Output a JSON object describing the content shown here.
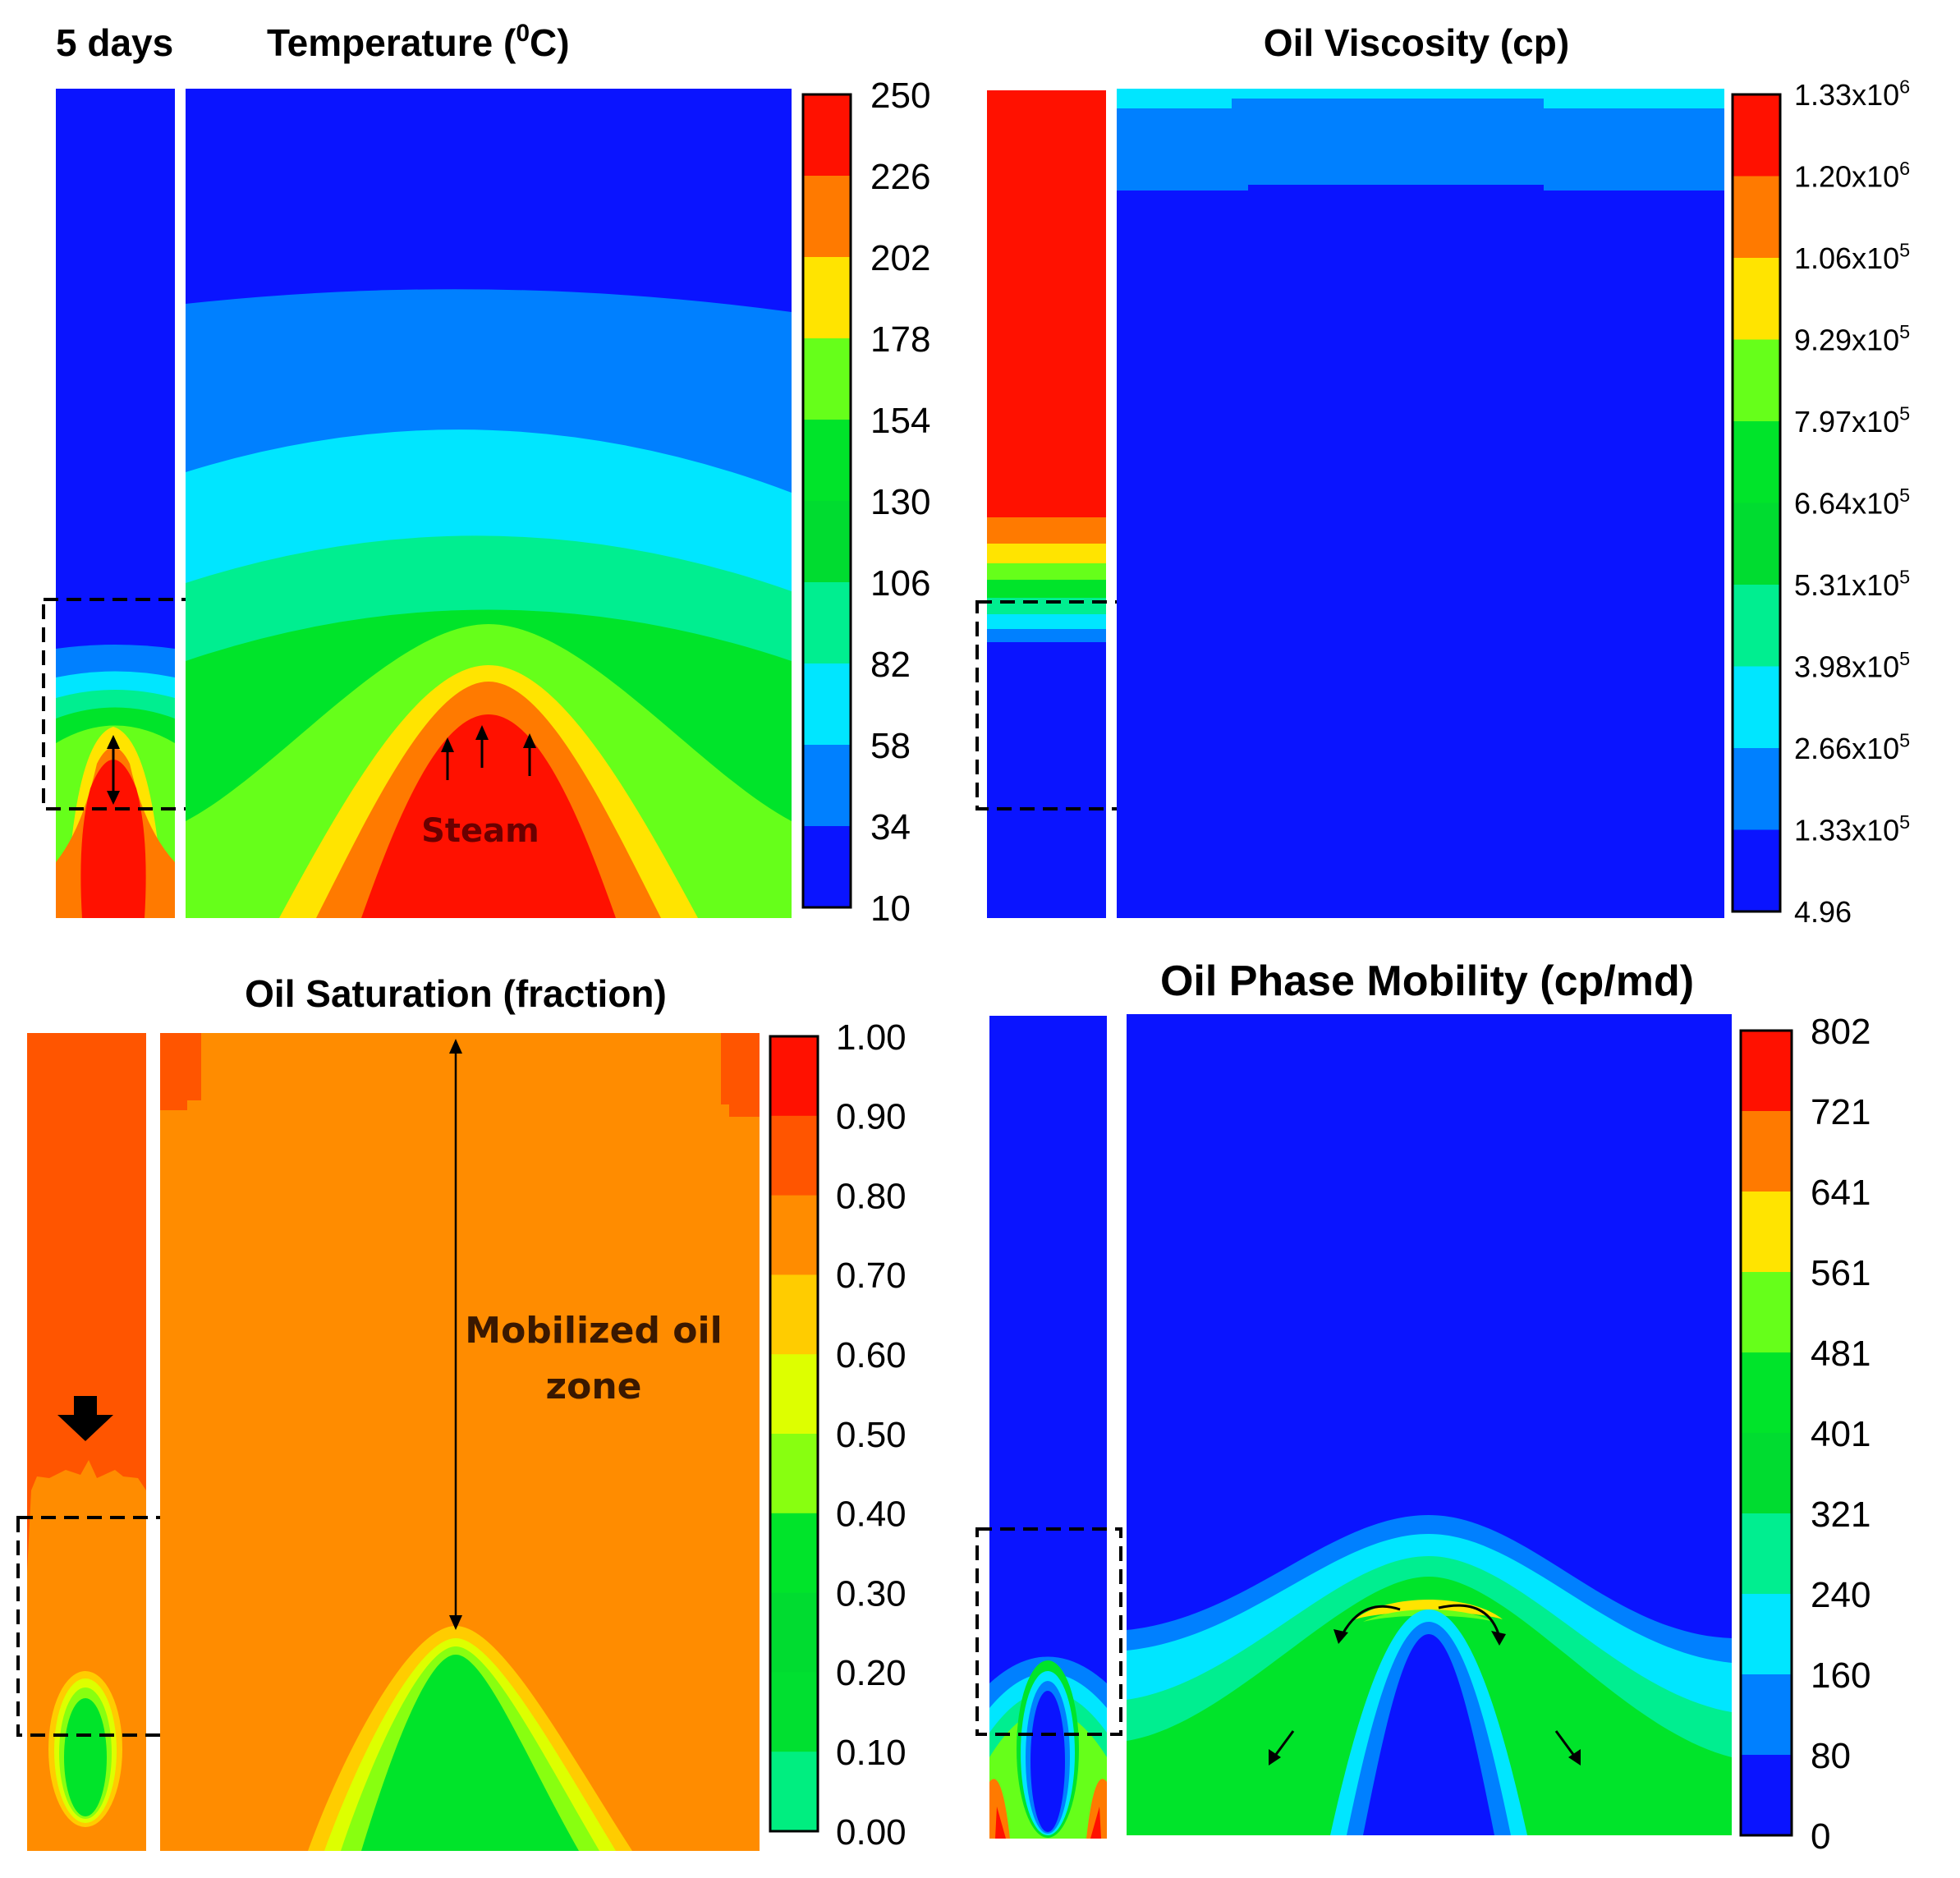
{
  "figure": {
    "day_label": "5 days",
    "colors": {
      "red": "#ff0000",
      "orange_red": "#ff5500",
      "orange": "#ff8800",
      "gold": "#ffcc00",
      "yellow": "#ffee00",
      "yellow_green": "#ccff00",
      "lime": "#66ff00",
      "green": "#00e400",
      "mint": "#00ee88",
      "cyan": "#00e6ff",
      "sky": "#0080ff",
      "blue": "#0a14ff"
    },
    "panels": {
      "temperature": {
        "title_main": "Temperature (",
        "title_sup": "0",
        "title_end": "C)",
        "annotation": "Steam",
        "colorbar": {
          "ticks": [
            "250",
            "226",
            "202",
            "178",
            "154",
            "130",
            "106",
            "82",
            "58",
            "34",
            "10"
          ],
          "colors": [
            "#ff1100",
            "#ff7a00",
            "#ffe400",
            "#66ff1a",
            "#00e42a",
            "#00dc30",
            "#00ee90",
            "#00e6ff",
            "#0080ff",
            "#0a14ff"
          ]
        }
      },
      "viscosity": {
        "title": "Oil Viscosity (cp)",
        "colorbar": {
          "ticks": [
            {
              "base": "1.33x10",
              "exp": "6"
            },
            {
              "base": "1.20x10",
              "exp": "6"
            },
            {
              "base": "1.06x10",
              "exp": "5"
            },
            {
              "base": "9.29x10",
              "exp": "5"
            },
            {
              "base": "7.97x10",
              "exp": "5"
            },
            {
              "base": "6.64x10",
              "exp": "5"
            },
            {
              "base": "5.31x10",
              "exp": "5"
            },
            {
              "base": "3.98x10",
              "exp": "5"
            },
            {
              "base": "2.66x10",
              "exp": "5"
            },
            {
              "base": "1.33x10",
              "exp": "5"
            },
            {
              "base": "4.96",
              "exp": ""
            }
          ],
          "colors": [
            "#ff1100",
            "#ff7a00",
            "#ffe400",
            "#66ff1a",
            "#00e42a",
            "#00dc30",
            "#00ee90",
            "#00e6ff",
            "#0080ff",
            "#0a14ff"
          ]
        }
      },
      "saturation": {
        "title": "Oil Saturation (fraction)",
        "annotation_line1": "Mobilized oil",
        "annotation_line2": "zone",
        "colorbar": {
          "ticks": [
            "1.00",
            "0.90",
            "0.80",
            "0.70",
            "0.60",
            "0.50",
            "0.40",
            "0.30",
            "0.20",
            "0.10",
            "0.00"
          ],
          "colors": [
            "#ff1100",
            "#ff5500",
            "#ff8c00",
            "#ffcc00",
            "#ddff00",
            "#88ff10",
            "#00e42a",
            "#00dc30",
            "#00e030",
            "#00ee80"
          ]
        }
      },
      "mobility": {
        "title": "Oil Phase Mobility (cp/md)",
        "colorbar": {
          "ticks": [
            "802",
            "721",
            "641",
            "561",
            "481",
            "401",
            "321",
            "240",
            "160",
            "80",
            "0"
          ],
          "colors": [
            "#ff1100",
            "#ff7a00",
            "#ffe400",
            "#66ff1a",
            "#00e42a",
            "#00dc30",
            "#00ee90",
            "#00e6ff",
            "#0080ff",
            "#0a14ff"
          ]
        }
      }
    }
  }
}
